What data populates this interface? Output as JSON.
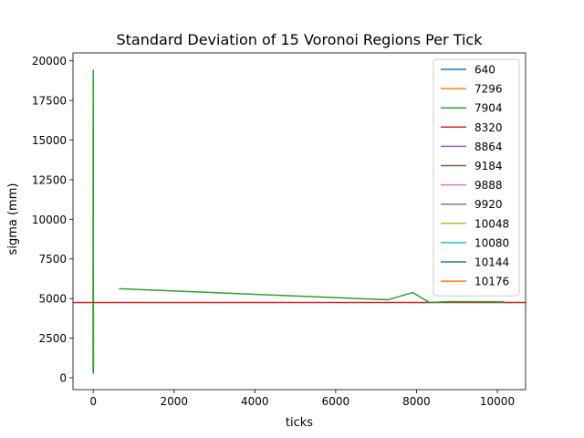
{
  "chart_data": {
    "type": "line",
    "title": "Standard Deviation of 15 Voronoi Regions Per Tick",
    "xlabel": "ticks",
    "ylabel": "sigma (mm)",
    "xlim": [
      -500,
      10700
    ],
    "ylim": [
      -750,
      20500
    ],
    "xticks": [
      0,
      2000,
      4000,
      6000,
      8000,
      10000
    ],
    "yticks": [
      0,
      2500,
      5000,
      7500,
      10000,
      12500,
      15000,
      17500,
      20000
    ],
    "grid": false,
    "legend_position": "top-right",
    "series": [
      {
        "name": "640",
        "color": "#1f77b4",
        "x": [
          0,
          1,
          2,
          3,
          4
        ],
        "y": [
          500,
          16000,
          900,
          300,
          250
        ]
      },
      {
        "name": "7296",
        "color": "#ff7f0e",
        "x": [
          0,
          1,
          2,
          3,
          4,
          5
        ],
        "y": [
          700,
          16800,
          5500,
          2000,
          800,
          600
        ]
      },
      {
        "name": "7904",
        "color": "#2ca02c",
        "x": [
          0,
          1,
          2,
          3,
          4,
          5,
          6
        ],
        "y": [
          600,
          19400,
          17500,
          8000,
          3000,
          5600,
          600
        ]
      },
      {
        "name": "8320",
        "color": "#d62728",
        "x": [
          -500,
          10700
        ],
        "y": [
          4750,
          4750
        ]
      },
      {
        "name": "8864",
        "color": "#9467bd",
        "x": [],
        "y": []
      },
      {
        "name": "9184",
        "color": "#8c564b",
        "x": [],
        "y": []
      },
      {
        "name": "9888",
        "color": "#e377c2",
        "x": [],
        "y": []
      },
      {
        "name": "9920",
        "color": "#7f7f7f",
        "x": [],
        "y": []
      },
      {
        "name": "10048",
        "color": "#bcbd22",
        "x": [],
        "y": []
      },
      {
        "name": "10080",
        "color": "#17becf",
        "x": [],
        "y": []
      },
      {
        "name": "10144",
        "color": "#1f77b4",
        "x": [],
        "y": []
      },
      {
        "name": "10176",
        "color": "#ff7f0e",
        "x": [],
        "y": []
      },
      {
        "name": "",
        "color": "#2ca02c",
        "x": [
          640,
          7296,
          7904,
          8320,
          8864,
          9184,
          9888,
          9920,
          10048,
          10080,
          10144,
          10176
        ],
        "y": [
          5620,
          4920,
          5380,
          4750,
          4810,
          4800,
          4790,
          4800,
          4780,
          4800,
          4790,
          4800
        ]
      }
    ]
  }
}
